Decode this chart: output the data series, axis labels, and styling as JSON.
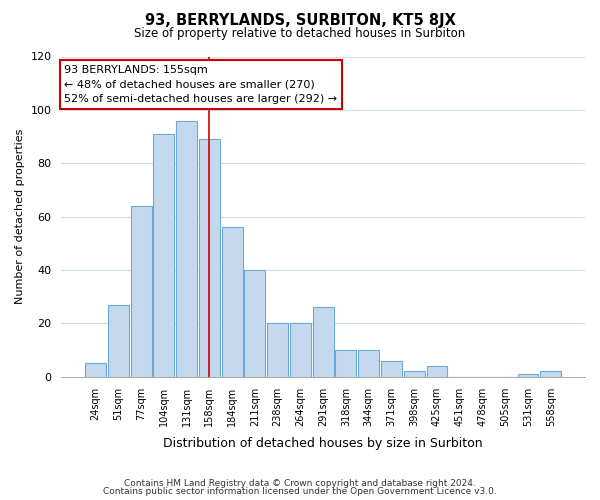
{
  "title": "93, BERRYLANDS, SURBITON, KT5 8JX",
  "subtitle": "Size of property relative to detached houses in Surbiton",
  "xlabel": "Distribution of detached houses by size in Surbiton",
  "ylabel": "Number of detached properties",
  "footer_lines": [
    "Contains HM Land Registry data © Crown copyright and database right 2024.",
    "Contains public sector information licensed under the Open Government Licence v3.0."
  ],
  "categories": [
    "24sqm",
    "51sqm",
    "77sqm",
    "104sqm",
    "131sqm",
    "158sqm",
    "184sqm",
    "211sqm",
    "238sqm",
    "264sqm",
    "291sqm",
    "318sqm",
    "344sqm",
    "371sqm",
    "398sqm",
    "425sqm",
    "451sqm",
    "478sqm",
    "505sqm",
    "531sqm",
    "558sqm"
  ],
  "values": [
    5,
    27,
    64,
    91,
    96,
    89,
    56,
    40,
    20,
    20,
    26,
    10,
    10,
    6,
    2,
    4,
    0,
    0,
    0,
    1,
    2
  ],
  "bar_color": "#c5d9ee",
  "bar_edge_color": "#6aaad4",
  "vline_color": "#cc0000",
  "vline_index": 5,
  "ylim": [
    0,
    120
  ],
  "yticks": [
    0,
    20,
    40,
    60,
    80,
    100,
    120
  ],
  "annotation_text": "93 BERRYLANDS: 155sqm\n← 48% of detached houses are smaller (270)\n52% of semi-detached houses are larger (292) →",
  "annotation_box_color": "#ffffff",
  "annotation_box_edge": "#cc0000",
  "background_color": "#ffffff",
  "grid_color": "#d0dce8"
}
